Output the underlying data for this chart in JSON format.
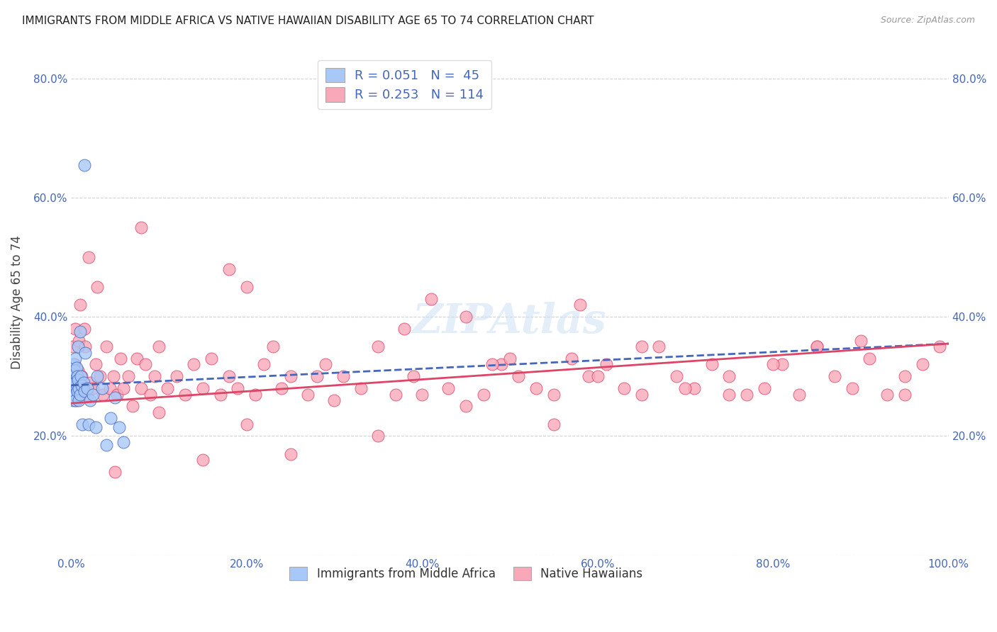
{
  "title": "IMMIGRANTS FROM MIDDLE AFRICA VS NATIVE HAWAIIAN DISABILITY AGE 65 TO 74 CORRELATION CHART",
  "source": "Source: ZipAtlas.com",
  "ylabel": "Disability Age 65 to 74",
  "xlim": [
    0.0,
    1.0
  ],
  "ylim": [
    0.0,
    0.85
  ],
  "ytick_labels": [
    "",
    "20.0%",
    "40.0%",
    "60.0%",
    "80.0%"
  ],
  "ytick_values": [
    0.0,
    0.2,
    0.4,
    0.6,
    0.8
  ],
  "xtick_labels": [
    "0.0%",
    "20.0%",
    "40.0%",
    "60.0%",
    "80.0%",
    "100.0%"
  ],
  "xtick_values": [
    0.0,
    0.2,
    0.4,
    0.6,
    0.8,
    1.0
  ],
  "legend_label1": "Immigrants from Middle Africa",
  "legend_label2": "Native Hawaiians",
  "R1": 0.051,
  "N1": 45,
  "R2": 0.253,
  "N2": 114,
  "color1": "#a8c8f8",
  "color2": "#f8a8b8",
  "line_color1": "#4466bb",
  "line_color2": "#dd4466",
  "background_color": "#ffffff",
  "scatter1_x": [
    0.001,
    0.001,
    0.002,
    0.002,
    0.002,
    0.002,
    0.003,
    0.003,
    0.003,
    0.003,
    0.004,
    0.004,
    0.004,
    0.005,
    0.005,
    0.005,
    0.006,
    0.006,
    0.007,
    0.007,
    0.008,
    0.008,
    0.009,
    0.009,
    0.01,
    0.01,
    0.011,
    0.012,
    0.013,
    0.014,
    0.015,
    0.016,
    0.018,
    0.02,
    0.022,
    0.025,
    0.028,
    0.03,
    0.035,
    0.04,
    0.045,
    0.05,
    0.055,
    0.06,
    0.015
  ],
  "scatter1_y": [
    0.285,
    0.295,
    0.27,
    0.3,
    0.26,
    0.28,
    0.32,
    0.275,
    0.29,
    0.265,
    0.31,
    0.285,
    0.27,
    0.33,
    0.26,
    0.29,
    0.315,
    0.28,
    0.3,
    0.275,
    0.35,
    0.295,
    0.28,
    0.26,
    0.375,
    0.27,
    0.3,
    0.285,
    0.22,
    0.29,
    0.275,
    0.34,
    0.28,
    0.22,
    0.26,
    0.27,
    0.215,
    0.3,
    0.28,
    0.185,
    0.23,
    0.265,
    0.215,
    0.19,
    0.655
  ],
  "scatter2_x": [
    0.001,
    0.002,
    0.003,
    0.004,
    0.005,
    0.006,
    0.007,
    0.008,
    0.009,
    0.01,
    0.011,
    0.012,
    0.013,
    0.015,
    0.016,
    0.018,
    0.02,
    0.022,
    0.025,
    0.028,
    0.03,
    0.033,
    0.036,
    0.04,
    0.044,
    0.048,
    0.052,
    0.056,
    0.06,
    0.065,
    0.07,
    0.075,
    0.08,
    0.085,
    0.09,
    0.095,
    0.1,
    0.11,
    0.12,
    0.13,
    0.14,
    0.15,
    0.16,
    0.17,
    0.18,
    0.19,
    0.2,
    0.21,
    0.22,
    0.23,
    0.24,
    0.25,
    0.27,
    0.29,
    0.31,
    0.33,
    0.35,
    0.37,
    0.39,
    0.41,
    0.43,
    0.45,
    0.47,
    0.49,
    0.51,
    0.53,
    0.55,
    0.57,
    0.59,
    0.61,
    0.63,
    0.65,
    0.67,
    0.69,
    0.71,
    0.73,
    0.75,
    0.77,
    0.79,
    0.81,
    0.83,
    0.85,
    0.87,
    0.89,
    0.91,
    0.93,
    0.95,
    0.97,
    0.99,
    0.05,
    0.1,
    0.15,
    0.2,
    0.25,
    0.3,
    0.35,
    0.4,
    0.45,
    0.5,
    0.55,
    0.6,
    0.65,
    0.7,
    0.75,
    0.8,
    0.85,
    0.9,
    0.95,
    0.08,
    0.18,
    0.28,
    0.38,
    0.48,
    0.58
  ],
  "scatter2_y": [
    0.28,
    0.35,
    0.27,
    0.32,
    0.38,
    0.26,
    0.29,
    0.31,
    0.36,
    0.42,
    0.27,
    0.3,
    0.28,
    0.38,
    0.35,
    0.27,
    0.5,
    0.29,
    0.28,
    0.32,
    0.45,
    0.3,
    0.27,
    0.35,
    0.28,
    0.3,
    0.27,
    0.33,
    0.28,
    0.3,
    0.25,
    0.33,
    0.28,
    0.32,
    0.27,
    0.3,
    0.35,
    0.28,
    0.3,
    0.27,
    0.32,
    0.28,
    0.33,
    0.27,
    0.3,
    0.28,
    0.45,
    0.27,
    0.32,
    0.35,
    0.28,
    0.3,
    0.27,
    0.32,
    0.3,
    0.28,
    0.35,
    0.27,
    0.3,
    0.43,
    0.28,
    0.4,
    0.27,
    0.32,
    0.3,
    0.28,
    0.27,
    0.33,
    0.3,
    0.32,
    0.28,
    0.27,
    0.35,
    0.3,
    0.28,
    0.32,
    0.3,
    0.27,
    0.28,
    0.32,
    0.27,
    0.35,
    0.3,
    0.28,
    0.33,
    0.27,
    0.3,
    0.32,
    0.35,
    0.14,
    0.24,
    0.16,
    0.22,
    0.17,
    0.26,
    0.2,
    0.27,
    0.25,
    0.33,
    0.22,
    0.3,
    0.35,
    0.28,
    0.27,
    0.32,
    0.35,
    0.36,
    0.27,
    0.55,
    0.48,
    0.3,
    0.38,
    0.32,
    0.42
  ],
  "line1_x0": 0.0,
  "line1_x1": 1.0,
  "line1_y0": 0.285,
  "line1_y1": 0.355,
  "line2_x0": 0.0,
  "line2_x1": 1.0,
  "line2_y0": 0.255,
  "line2_y1": 0.355
}
